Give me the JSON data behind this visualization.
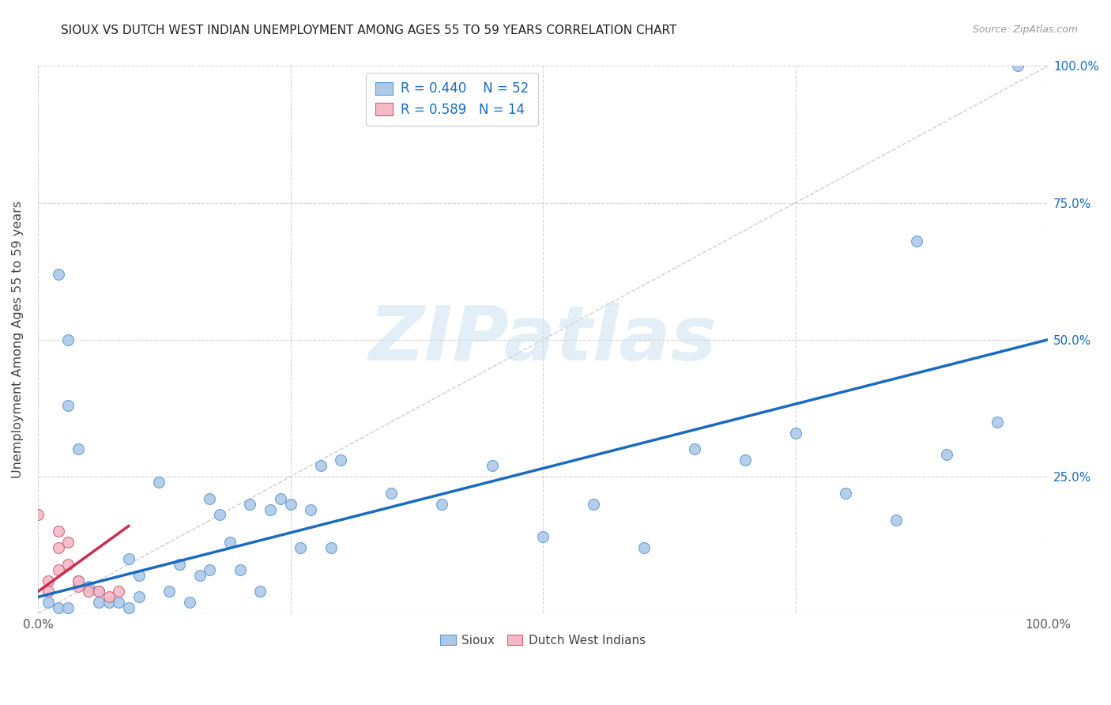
{
  "title": "SIOUX VS DUTCH WEST INDIAN UNEMPLOYMENT AMONG AGES 55 TO 59 YEARS CORRELATION CHART",
  "source": "Source: ZipAtlas.com",
  "ylabel": "Unemployment Among Ages 55 to 59 years",
  "xlim": [
    0,
    1
  ],
  "ylim": [
    0,
    1
  ],
  "xtick_vals": [
    0.0,
    0.25,
    0.5,
    0.75,
    1.0
  ],
  "xtick_labels": [
    "0.0%",
    "",
    "",
    "",
    "100.0%"
  ],
  "ytick_vals": [
    0.0,
    0.25,
    0.5,
    0.75,
    1.0
  ],
  "ytick_labels": [
    "",
    "",
    "",
    "",
    ""
  ],
  "right_ytick_vals": [
    0.0,
    0.25,
    0.5,
    0.75,
    1.0
  ],
  "right_ytick_labels": [
    "",
    "25.0%",
    "50.0%",
    "75.0%",
    "100.0%"
  ],
  "watermark_text": "ZIPatlas",
  "sioux_color": "#aec9e8",
  "sioux_edge_color": "#5b9bd5",
  "dutch_color": "#f4b8c8",
  "dutch_edge_color": "#d06070",
  "trendline_sioux_color": "#1a6bbf",
  "trendline_dutch_color": "#c83050",
  "diagonal_color": "#c8c8c8",
  "legend_label_color": "#1a6bbf",
  "legend_R_sioux": "R = 0.440",
  "legend_N_sioux": "N = 52",
  "legend_R_dutch": "R = 0.589",
  "legend_N_dutch": "N = 14",
  "sioux_x": [
    0.97,
    0.87,
    0.02,
    0.03,
    0.03,
    0.04,
    0.05,
    0.06,
    0.06,
    0.07,
    0.08,
    0.09,
    0.09,
    0.1,
    0.1,
    0.12,
    0.13,
    0.14,
    0.15,
    0.16,
    0.17,
    0.17,
    0.18,
    0.19,
    0.2,
    0.21,
    0.22,
    0.23,
    0.24,
    0.25,
    0.26,
    0.27,
    0.28,
    0.29,
    0.3,
    0.35,
    0.4,
    0.45,
    0.5,
    0.55,
    0.6,
    0.65,
    0.7,
    0.75,
    0.8,
    0.85,
    0.9,
    0.95,
    0.01,
    0.02,
    0.03,
    0.04
  ],
  "sioux_y": [
    1.0,
    0.68,
    0.62,
    0.5,
    0.38,
    0.3,
    0.05,
    0.04,
    0.02,
    0.02,
    0.02,
    0.01,
    0.1,
    0.03,
    0.07,
    0.24,
    0.04,
    0.09,
    0.02,
    0.07,
    0.21,
    0.08,
    0.18,
    0.13,
    0.08,
    0.2,
    0.04,
    0.19,
    0.21,
    0.2,
    0.12,
    0.19,
    0.27,
    0.12,
    0.28,
    0.22,
    0.2,
    0.27,
    0.14,
    0.2,
    0.12,
    0.3,
    0.28,
    0.33,
    0.22,
    0.17,
    0.29,
    0.35,
    0.02,
    0.01,
    0.01,
    0.06
  ],
  "dutch_x": [
    0.0,
    0.01,
    0.01,
    0.02,
    0.02,
    0.02,
    0.03,
    0.03,
    0.04,
    0.04,
    0.05,
    0.06,
    0.07,
    0.08
  ],
  "dutch_y": [
    0.18,
    0.04,
    0.06,
    0.15,
    0.12,
    0.08,
    0.13,
    0.09,
    0.05,
    0.06,
    0.04,
    0.04,
    0.03,
    0.04
  ],
  "sioux_trend_x": [
    0.0,
    1.0
  ],
  "sioux_trend_y": [
    0.03,
    0.5
  ],
  "dutch_trend_x": [
    0.0,
    0.09
  ],
  "dutch_trend_y": [
    0.04,
    0.16
  ],
  "marker_size": 100,
  "grid_color": "#c8c8c8",
  "grid_linestyle": "--",
  "grid_linewidth": 0.8
}
